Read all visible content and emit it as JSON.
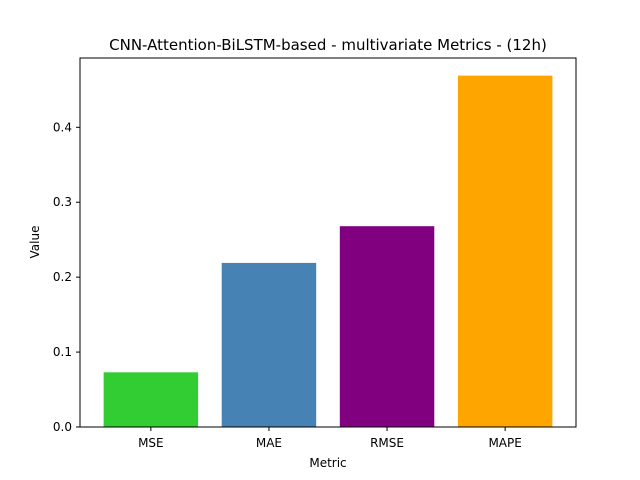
{
  "chart_data": {
    "type": "bar",
    "title": "CNN-Attention-BiLSTM-based - multivariate Metrics -  (12h)",
    "xlabel": "Metric",
    "ylabel": "Value",
    "categories": [
      "MSE",
      "MAE",
      "RMSE",
      "MAPE"
    ],
    "values": [
      0.073,
      0.219,
      0.268,
      0.469
    ],
    "colors": [
      "#32cd32",
      "#4682b4",
      "#800080",
      "#ffa500"
    ],
    "ylim": [
      0,
      0.4925
    ],
    "yticks": [
      0.0,
      0.1,
      0.2,
      0.3,
      0.4
    ],
    "ytick_labels": [
      "0.0",
      "0.1",
      "0.2",
      "0.3",
      "0.4"
    ],
    "grid": false,
    "legend": "none"
  }
}
